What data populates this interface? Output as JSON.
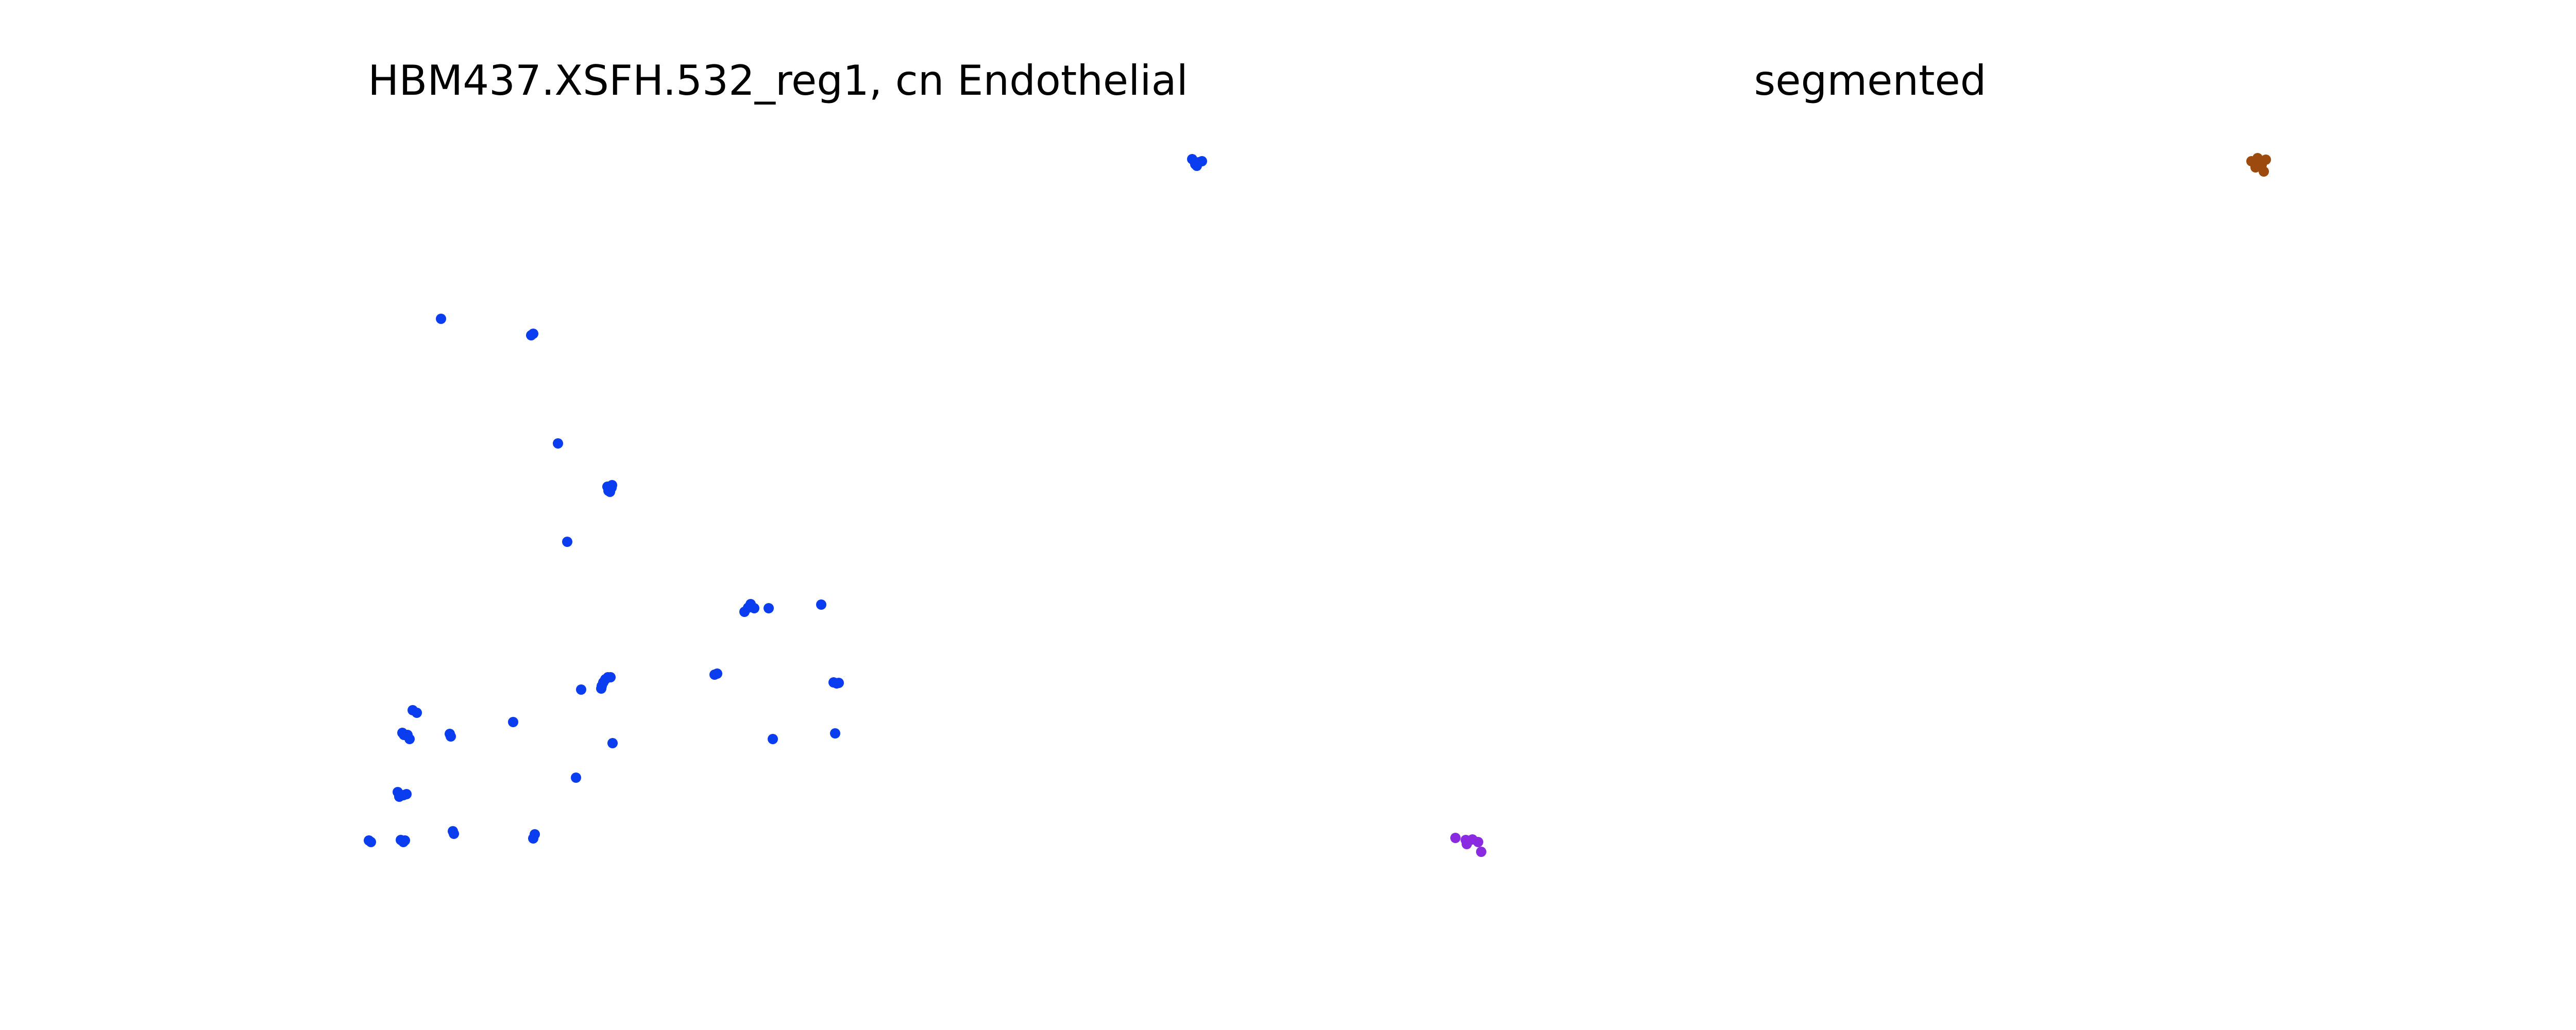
{
  "colors": {
    "endothelial": "#0a3cf0",
    "segment_brown": "#9c4a0e",
    "segment_purple": "#8a2be2"
  },
  "chart_data": [
    {
      "type": "scatter",
      "title": "HBM437.XSFH.532_reg1, cn Endothelial",
      "grid": false,
      "axes_visible": false,
      "xlim": [
        0,
        1670
      ],
      "ylim": [
        0,
        1480
      ],
      "series": [
        {
          "color": "#0a3cf0",
          "points": [
            [
              1614,
              1456
            ],
            [
              1620,
              1446
            ],
            [
              1627,
              1450
            ],
            [
              1623,
              1443
            ],
            [
              1633,
              1452
            ],
            [
              156,
              1146
            ],
            [
              335,
              1117
            ],
            [
              331,
              1114
            ],
            [
              383,
              904
            ],
            [
              483,
              815
            ],
            [
              479,
              820
            ],
            [
              487,
              818
            ],
            [
              481,
              812
            ],
            [
              488,
              823
            ],
            [
              484,
              810
            ],
            [
              401,
              713
            ],
            [
              752,
              585
            ],
            [
              757,
              592
            ],
            [
              764,
              584
            ],
            [
              792,
              584
            ],
            [
              894,
              591
            ],
            [
              745,
              577
            ],
            [
              687,
              455
            ],
            [
              692,
              457
            ],
            [
              918,
              440
            ],
            [
              924,
              438
            ],
            [
              928,
              439
            ],
            [
              101,
              386
            ],
            [
              109,
              381
            ],
            [
              475,
              446
            ],
            [
              480,
              450
            ],
            [
              485,
              450
            ],
            [
              471,
              440
            ],
            [
              467,
              428
            ],
            [
              468,
              433
            ],
            [
              428,
              426
            ],
            [
              81,
              342
            ],
            [
              84,
              338
            ],
            [
              91,
              338
            ],
            [
              95,
              330
            ],
            [
              173,
              340
            ],
            [
              175,
              335
            ],
            [
              296,
              363
            ],
            [
              489,
              322
            ],
            [
              800,
              330
            ],
            [
              921,
              341
            ],
            [
              418,
              255
            ],
            [
              72,
              227
            ],
            [
              75,
              218
            ],
            [
              89,
              223
            ],
            [
              83,
              221
            ],
            [
              16,
              133
            ],
            [
              20,
              130
            ],
            [
              78,
              134
            ],
            [
              86,
              133
            ],
            [
              83,
              130
            ],
            [
              179,
              151
            ],
            [
              181,
              146
            ],
            [
              335,
              137
            ],
            [
              338,
              145
            ]
          ]
        }
      ]
    },
    {
      "type": "scatter",
      "title": "segmented",
      "grid": false,
      "axes_visible": false,
      "xlim": [
        0,
        1670
      ],
      "ylim": [
        0,
        1480
      ],
      "series": [
        {
          "color": "#9c4a0e",
          "points": [
            [
              1570,
              1452
            ],
            [
              1582,
              1458
            ],
            [
              1598,
              1455
            ],
            [
              1590,
              1445
            ],
            [
              1578,
              1440
            ],
            [
              1586,
              1447
            ],
            [
              1594,
              1432
            ]
          ]
        },
        {
          "color": "#8a2be2",
          "points": [
            [
              25,
              138
            ],
            [
              45,
              134
            ],
            [
              47,
              126
            ],
            [
              58,
              135
            ],
            [
              69,
              130
            ],
            [
              75,
              111
            ]
          ]
        }
      ]
    }
  ]
}
